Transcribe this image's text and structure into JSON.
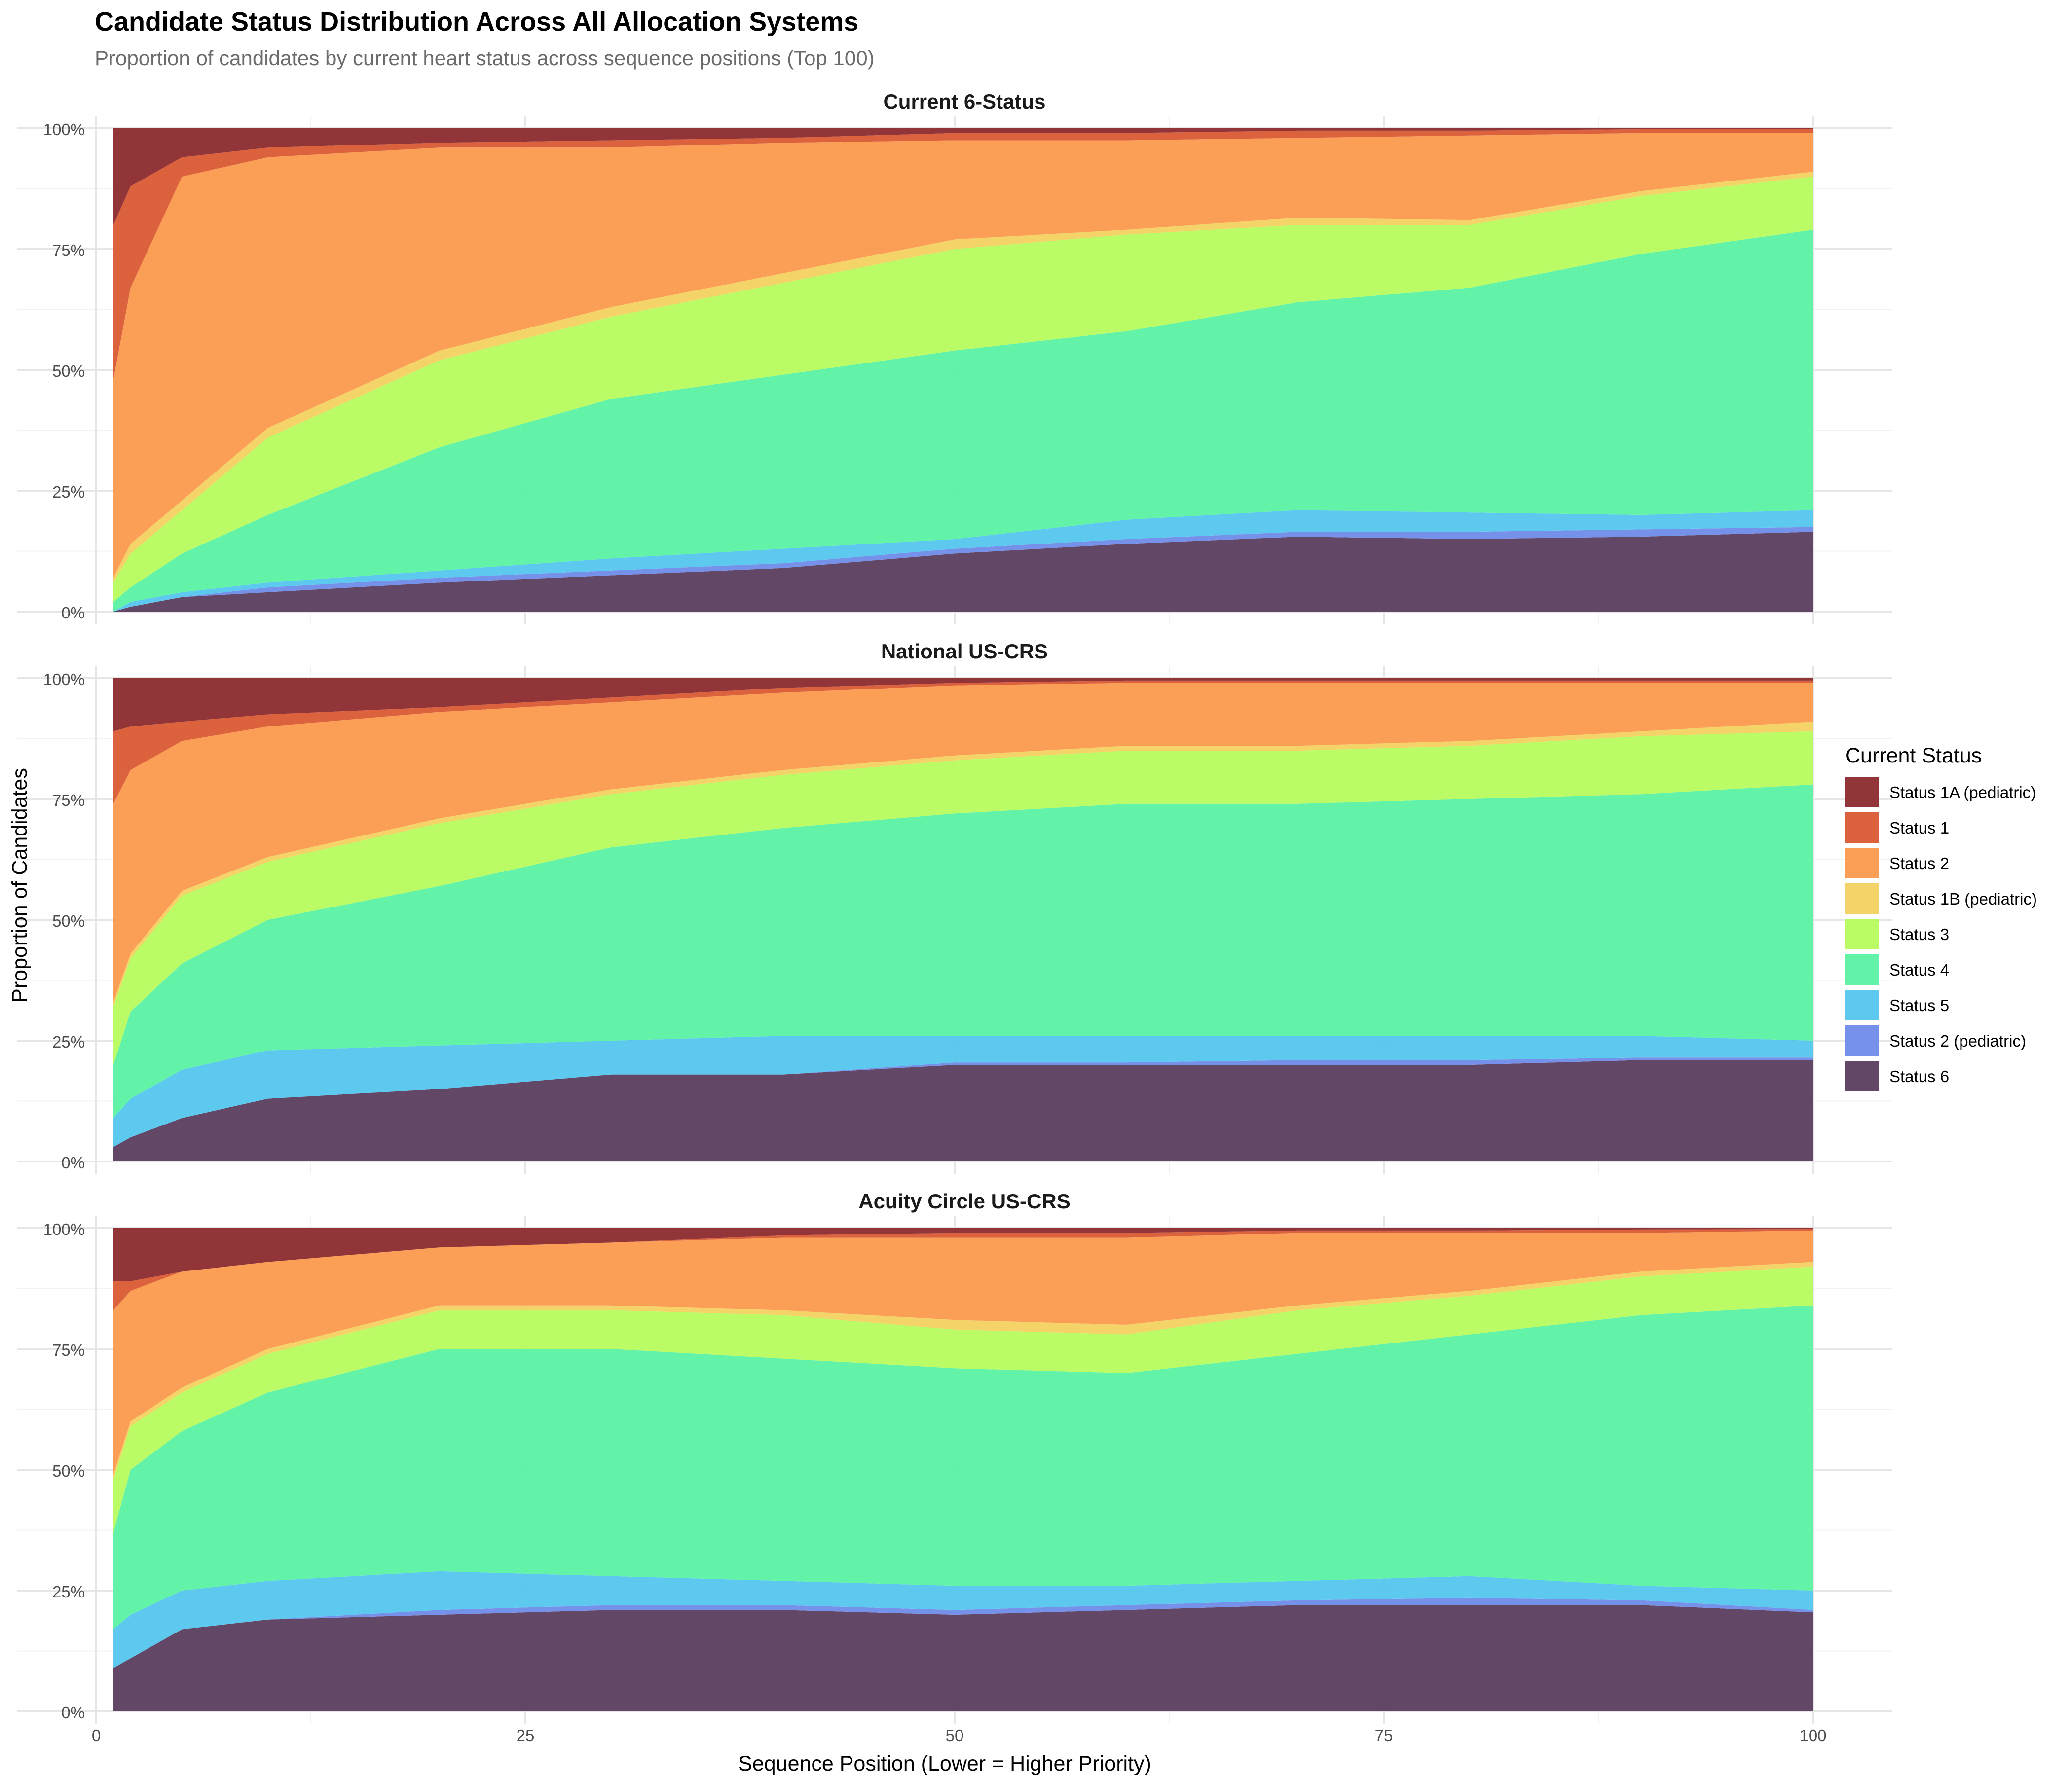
{
  "title": "Candidate Status Distribution Across All Allocation Systems",
  "subtitle": "Proportion of candidates by current heart status across sequence positions (Top 100)",
  "chart_data": {
    "type": "area",
    "stacked": true,
    "normalized": true,
    "xlabel": "Sequence Position (Lower = Higher Priority)",
    "ylabel": "Proportion of Candidates",
    "xlim": [
      0,
      100
    ],
    "ylim": [
      0,
      1
    ],
    "x_ticks": [
      0,
      25,
      50,
      75,
      100
    ],
    "x_tick_labels": [
      "0",
      "25",
      "50",
      "75",
      "100"
    ],
    "y_ticks": [
      0,
      0.25,
      0.5,
      0.75,
      1.0
    ],
    "y_tick_labels": [
      "0%",
      "25%",
      "50%",
      "75%",
      "100%"
    ],
    "grid": true,
    "legend": {
      "title": "Current Status",
      "position": "right",
      "order_top_to_bottom": [
        "Status 1A (pediatric)",
        "Status 1",
        "Status 2",
        "Status 1B (pediatric)",
        "Status 3",
        "Status 4",
        "Status 5",
        "Status 2 (pediatric)",
        "Status 6"
      ]
    },
    "stack_order_bottom_to_top": [
      "Status 6",
      "Status 2 (pediatric)",
      "Status 5",
      "Status 4",
      "Status 3",
      "Status 1B (pediatric)",
      "Status 2",
      "Status 1",
      "Status 1A (pediatric)"
    ],
    "colors": {
      "Status 1A (pediatric)": "#8B2A2E",
      "Status 1": "#DA5A34",
      "Status 2": "#FB9A4E",
      "Status 1B (pediatric)": "#F3D160",
      "Status 3": "#B6FB5E",
      "Status 4": "#5AF2A4",
      "Status 5": "#55C6EE",
      "Status 2 (pediatric)": "#6E8BE9",
      "Status 6": "#5A3D5E"
    },
    "x_sample_points": [
      1,
      2,
      5,
      10,
      20,
      30,
      40,
      50,
      60,
      70,
      80,
      90,
      100
    ],
    "value_note": "cumulative proportions (top edge of each stacked band) at x_sample_points",
    "panels": [
      {
        "title": "Current 6-Status",
        "cumulative": {
          "Status 6": [
            0.0,
            0.01,
            0.03,
            0.04,
            0.06,
            0.075,
            0.09,
            0.12,
            0.14,
            0.155,
            0.15,
            0.155,
            0.165
          ],
          "Status 2 (pediatric)": [
            0.0,
            0.01,
            0.03,
            0.05,
            0.07,
            0.085,
            0.1,
            0.13,
            0.15,
            0.165,
            0.165,
            0.17,
            0.175
          ],
          "Status 5": [
            0.0,
            0.02,
            0.04,
            0.06,
            0.085,
            0.11,
            0.13,
            0.15,
            0.19,
            0.21,
            0.205,
            0.2,
            0.21
          ],
          "Status 4": [
            0.02,
            0.05,
            0.12,
            0.2,
            0.34,
            0.44,
            0.49,
            0.54,
            0.58,
            0.64,
            0.67,
            0.74,
            0.79
          ],
          "Status 3": [
            0.06,
            0.12,
            0.21,
            0.36,
            0.52,
            0.61,
            0.68,
            0.75,
            0.78,
            0.8,
            0.8,
            0.86,
            0.9
          ],
          "Status 1B (pediatric)": [
            0.07,
            0.14,
            0.23,
            0.38,
            0.54,
            0.63,
            0.7,
            0.77,
            0.79,
            0.815,
            0.81,
            0.87,
            0.91
          ],
          "Status 2": [
            0.48,
            0.67,
            0.9,
            0.94,
            0.96,
            0.96,
            0.97,
            0.975,
            0.975,
            0.98,
            0.985,
            0.99,
            0.99
          ],
          "Status 1": [
            0.8,
            0.88,
            0.94,
            0.96,
            0.97,
            0.975,
            0.98,
            0.99,
            0.99,
            0.995,
            0.995,
            0.998,
            0.998
          ],
          "Status 1A (pediatric)": [
            1,
            1,
            1,
            1,
            1,
            1,
            1,
            1,
            1,
            1,
            1,
            1,
            1
          ]
        }
      },
      {
        "title": "National US-CRS",
        "cumulative": {
          "Status 6": [
            0.03,
            0.05,
            0.09,
            0.13,
            0.15,
            0.18,
            0.18,
            0.2,
            0.2,
            0.2,
            0.2,
            0.21,
            0.21
          ],
          "Status 2 (pediatric)": [
            0.03,
            0.05,
            0.09,
            0.13,
            0.15,
            0.18,
            0.18,
            0.205,
            0.205,
            0.21,
            0.21,
            0.215,
            0.215
          ],
          "Status 5": [
            0.09,
            0.13,
            0.19,
            0.23,
            0.24,
            0.25,
            0.26,
            0.26,
            0.26,
            0.26,
            0.26,
            0.26,
            0.25
          ],
          "Status 4": [
            0.2,
            0.31,
            0.41,
            0.5,
            0.57,
            0.65,
            0.69,
            0.72,
            0.74,
            0.74,
            0.75,
            0.76,
            0.78
          ],
          "Status 3": [
            0.32,
            0.42,
            0.55,
            0.62,
            0.7,
            0.76,
            0.8,
            0.83,
            0.85,
            0.85,
            0.86,
            0.88,
            0.89
          ],
          "Status 1B (pediatric)": [
            0.33,
            0.43,
            0.56,
            0.63,
            0.71,
            0.77,
            0.81,
            0.84,
            0.86,
            0.86,
            0.87,
            0.89,
            0.91
          ],
          "Status 2": [
            0.74,
            0.81,
            0.87,
            0.9,
            0.93,
            0.95,
            0.97,
            0.985,
            0.99,
            0.99,
            0.99,
            0.99,
            0.99
          ],
          "Status 1": [
            0.89,
            0.9,
            0.91,
            0.925,
            0.94,
            0.96,
            0.98,
            0.99,
            0.995,
            0.995,
            0.995,
            0.995,
            0.995
          ],
          "Status 1A (pediatric)": [
            1,
            1,
            1,
            1,
            1,
            1,
            1,
            1,
            1,
            1,
            1,
            1,
            1
          ]
        }
      },
      {
        "title": "Acuity Circle US-CRS",
        "cumulative": {
          "Status 6": [
            0.09,
            0.11,
            0.17,
            0.19,
            0.2,
            0.21,
            0.21,
            0.2,
            0.21,
            0.22,
            0.22,
            0.22,
            0.205
          ],
          "Status 2 (pediatric)": [
            0.09,
            0.11,
            0.17,
            0.19,
            0.21,
            0.22,
            0.22,
            0.21,
            0.22,
            0.23,
            0.235,
            0.23,
            0.21
          ],
          "Status 5": [
            0.17,
            0.2,
            0.25,
            0.27,
            0.29,
            0.28,
            0.27,
            0.26,
            0.26,
            0.27,
            0.28,
            0.26,
            0.25
          ],
          "Status 4": [
            0.37,
            0.5,
            0.58,
            0.66,
            0.75,
            0.75,
            0.73,
            0.71,
            0.7,
            0.74,
            0.78,
            0.82,
            0.84
          ],
          "Status 3": [
            0.48,
            0.59,
            0.66,
            0.74,
            0.83,
            0.83,
            0.82,
            0.79,
            0.78,
            0.83,
            0.86,
            0.9,
            0.92
          ],
          "Status 1B (pediatric)": [
            0.49,
            0.6,
            0.67,
            0.75,
            0.84,
            0.84,
            0.83,
            0.81,
            0.8,
            0.84,
            0.87,
            0.91,
            0.93
          ],
          "Status 2": [
            0.83,
            0.87,
            0.91,
            0.93,
            0.96,
            0.97,
            0.98,
            0.98,
            0.98,
            0.99,
            0.99,
            0.99,
            0.995
          ],
          "Status 1": [
            0.89,
            0.89,
            0.91,
            0.93,
            0.96,
            0.97,
            0.985,
            0.99,
            0.99,
            0.995,
            0.995,
            0.997,
            0.998
          ],
          "Status 1A (pediatric)": [
            1,
            1,
            1,
            1,
            1,
            1,
            1,
            1,
            1,
            1,
            1,
            1,
            1
          ]
        }
      }
    ]
  }
}
